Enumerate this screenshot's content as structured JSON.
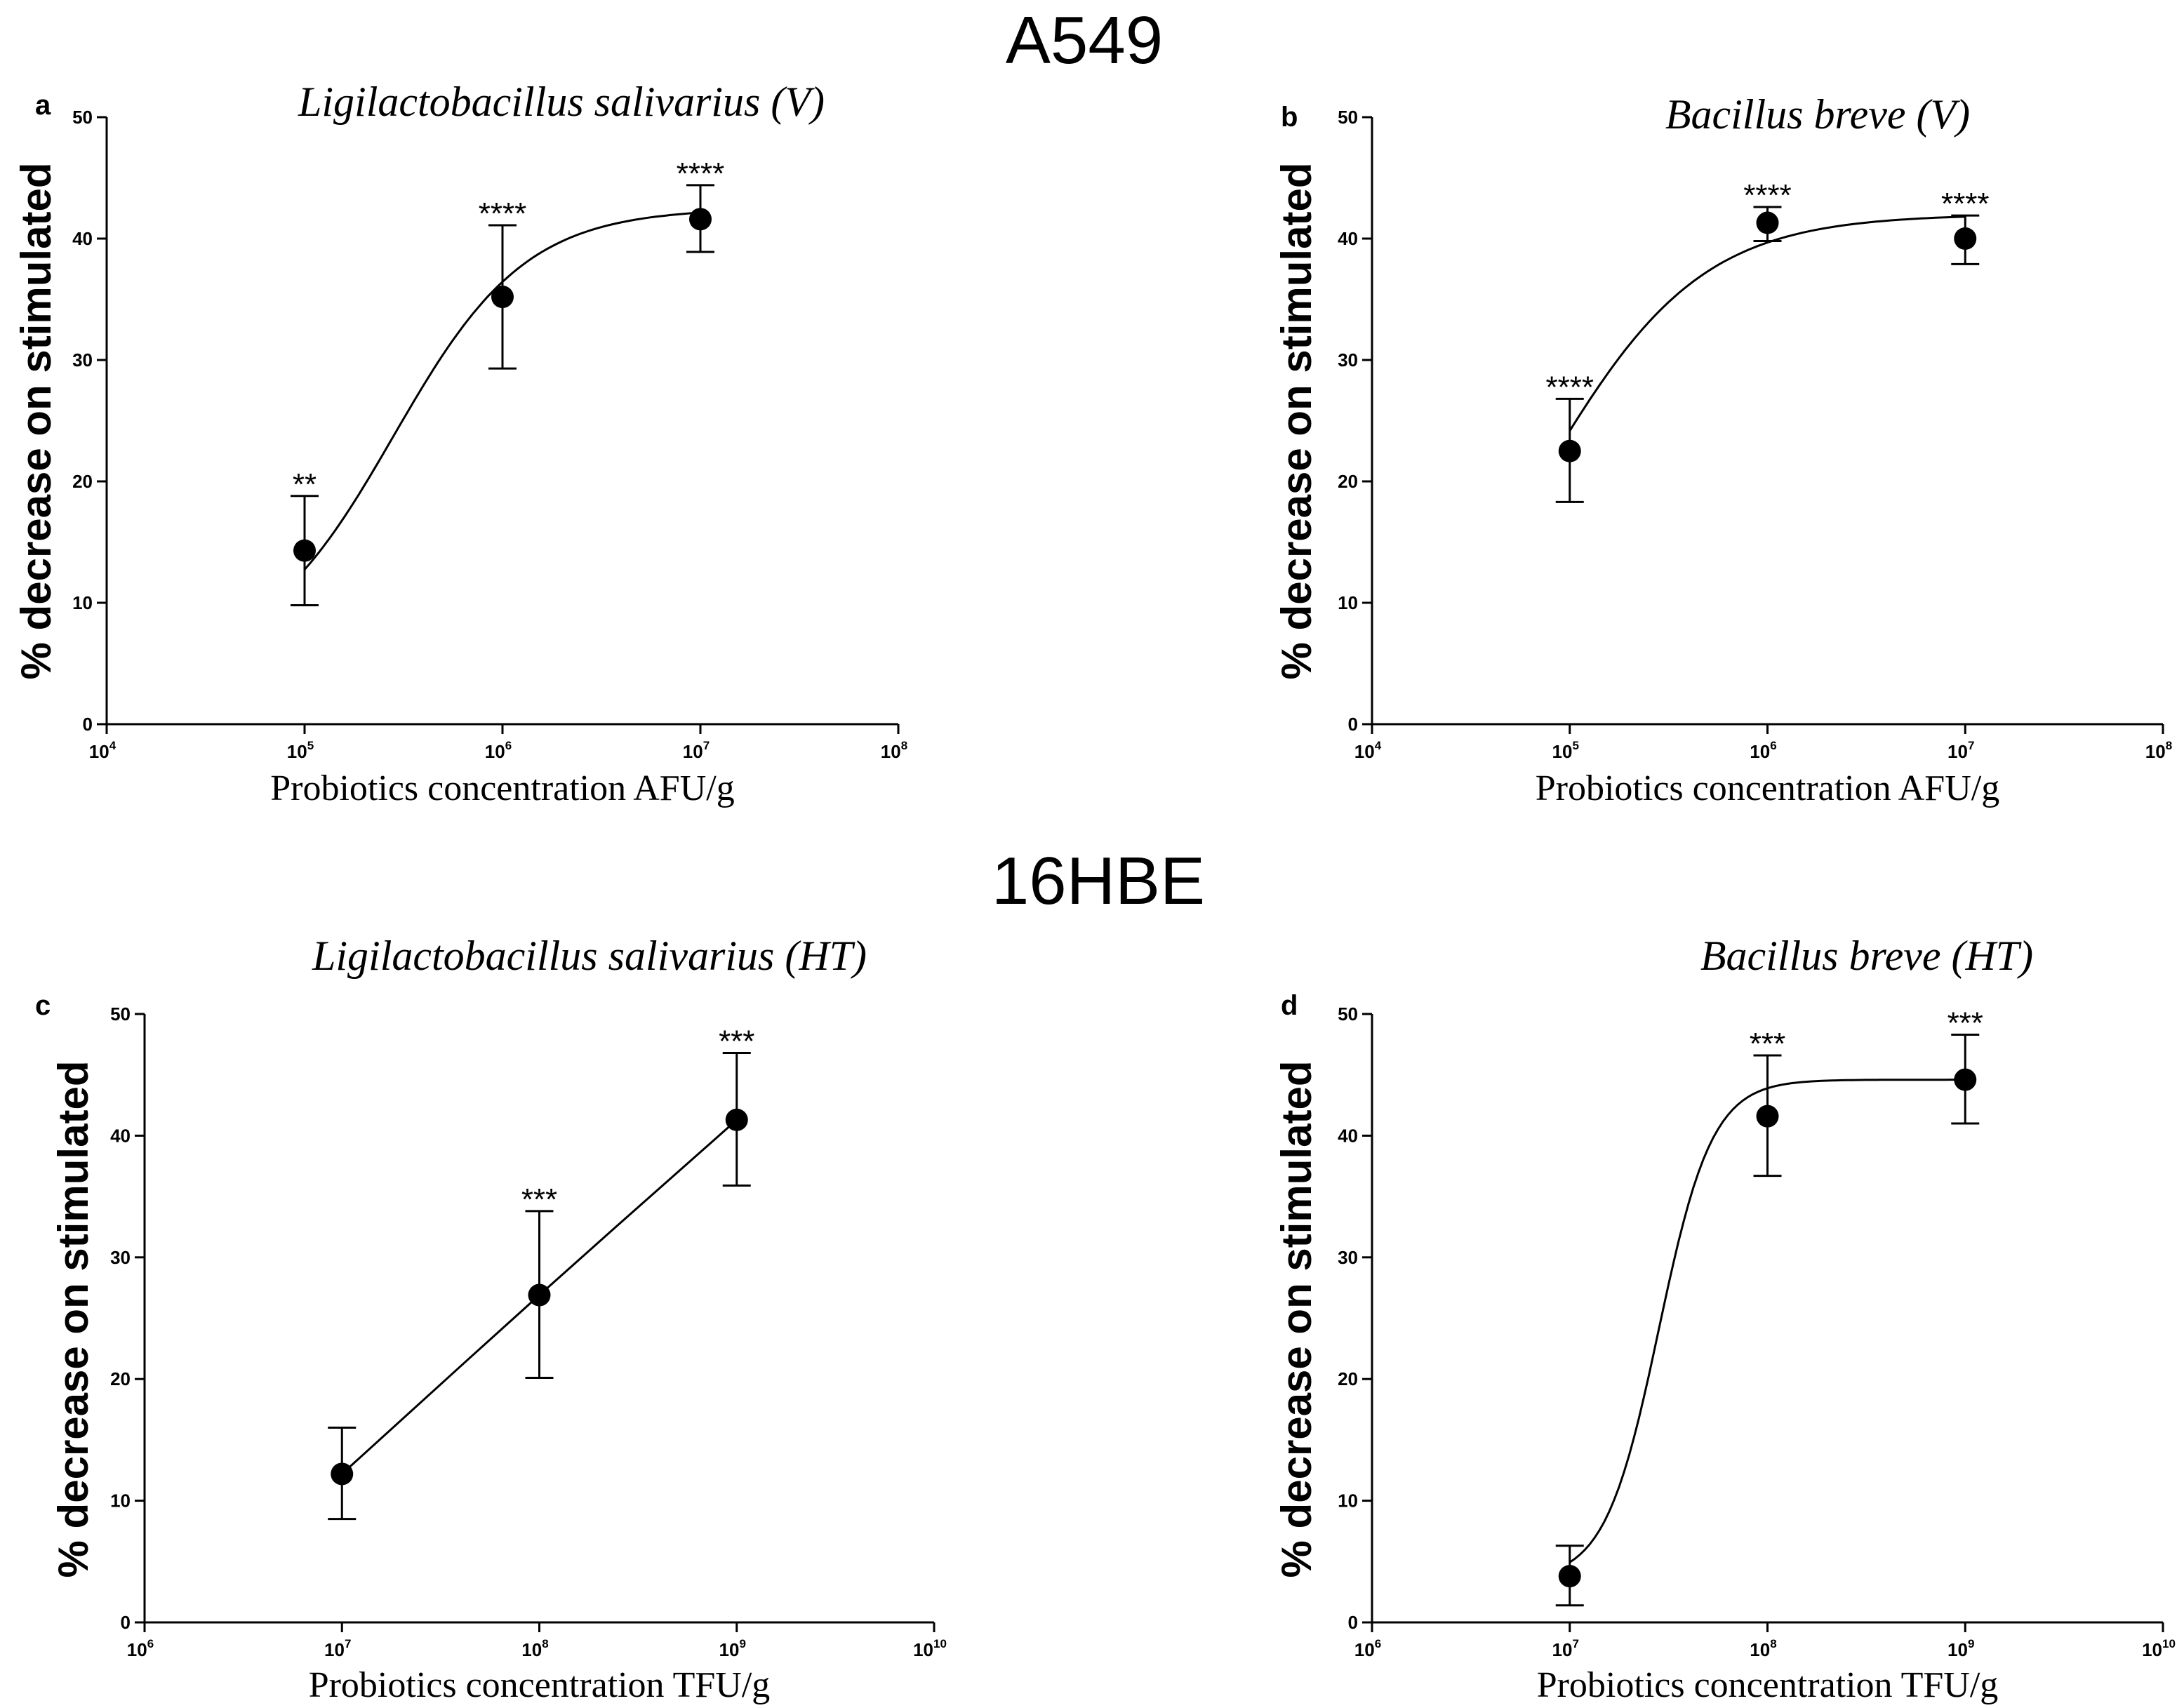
{
  "titles": {
    "top": "A549",
    "bottom": "16HBE"
  },
  "chart_data": [
    {
      "type": "scatter",
      "panel": "a",
      "title": "Ligilactobacillus salivarius (V)",
      "xlabel": "Probiotics concentration AFU/g",
      "ylabel": "% decrease on stimulated",
      "xscale": "log",
      "x_exponent_range": [
        4,
        8
      ],
      "xtick_labels": [
        {
          "base": "10",
          "exp": "4"
        },
        {
          "base": "10",
          "exp": "5"
        },
        {
          "base": "10",
          "exp": "6"
        },
        {
          "base": "10",
          "exp": "7"
        },
        {
          "base": "10",
          "exp": "8"
        }
      ],
      "ylim": [
        0,
        50
      ],
      "yticks": [
        0,
        10,
        20,
        30,
        40,
        50
      ],
      "points": [
        {
          "x_exp": 5,
          "y": 14.3,
          "err_low": 9.8,
          "err_high": 18.8,
          "sig": "**"
        },
        {
          "x_exp": 6,
          "y": 35.2,
          "err_low": 29.3,
          "err_high": 41.1,
          "sig": "****"
        },
        {
          "x_exp": 7,
          "y": 41.6,
          "err_low": 38.9,
          "err_high": 44.4,
          "sig": "****"
        }
      ],
      "curve": {
        "bottom": 5,
        "top": 42.5,
        "logEC50": 5.45,
        "hill": 1.3
      }
    },
    {
      "type": "scatter",
      "panel": "b",
      "title": "Bacillus breve (V)",
      "xlabel": "Probiotics concentration AFU/g",
      "ylabel": "% decrease on stimulated",
      "xscale": "log",
      "x_exponent_range": [
        4,
        8
      ],
      "xtick_labels": [
        {
          "base": "10",
          "exp": "4"
        },
        {
          "base": "10",
          "exp": "5"
        },
        {
          "base": "10",
          "exp": "6"
        },
        {
          "base": "10",
          "exp": "7"
        },
        {
          "base": "10",
          "exp": "8"
        }
      ],
      "ylim": [
        0,
        50
      ],
      "yticks": [
        0,
        10,
        20,
        30,
        40,
        50
      ],
      "points": [
        {
          "x_exp": 5,
          "y": 22.5,
          "err_low": 18.3,
          "err_high": 26.8,
          "sig": "****"
        },
        {
          "x_exp": 6,
          "y": 41.3,
          "err_low": 39.8,
          "err_high": 42.6,
          "sig": "****"
        },
        {
          "x_exp": 7,
          "y": 40.0,
          "err_low": 37.9,
          "err_high": 41.9,
          "sig": "****"
        }
      ],
      "curve": {
        "bottom": 0,
        "top": 42.0,
        "logEC50": 4.88,
        "hill": 1.1
      }
    },
    {
      "type": "scatter",
      "panel": "c",
      "title": "Ligilactobacillus salivarius (HT)",
      "xlabel": "Probiotics concentration TFU/g",
      "ylabel": "% decrease on stimulated",
      "xscale": "log",
      "x_exponent_range": [
        6,
        10
      ],
      "xtick_labels": [
        {
          "base": "10",
          "exp": "6"
        },
        {
          "base": "10",
          "exp": "7"
        },
        {
          "base": "10",
          "exp": "8"
        },
        {
          "base": "10",
          "exp": "9"
        },
        {
          "base": "10",
          "exp": "10"
        }
      ],
      "ylim": [
        0,
        50
      ],
      "yticks": [
        0,
        10,
        20,
        30,
        40,
        50
      ],
      "points": [
        {
          "x_exp": 7,
          "y": 12.2,
          "err_low": 8.5,
          "err_high": 16.0,
          "sig": ""
        },
        {
          "x_exp": 8,
          "y": 26.9,
          "err_low": 20.1,
          "err_high": 33.8,
          "sig": "***"
        },
        {
          "x_exp": 9,
          "y": 41.3,
          "err_low": 35.9,
          "err_high": 46.8,
          "sig": "***"
        }
      ],
      "curve": {
        "through_points": true
      }
    },
    {
      "type": "scatter",
      "panel": "d",
      "title": "Bacillus breve (HT)",
      "xlabel": "Probiotics concentration TFU/g",
      "ylabel": "% decrease on stimulated",
      "xscale": "log",
      "x_exponent_range": [
        6,
        10
      ],
      "xtick_labels": [
        {
          "base": "10",
          "exp": "6"
        },
        {
          "base": "10",
          "exp": "7"
        },
        {
          "base": "10",
          "exp": "8"
        },
        {
          "base": "10",
          "exp": "9"
        },
        {
          "base": "10",
          "exp": "10"
        }
      ],
      "ylim": [
        0,
        50
      ],
      "yticks": [
        0,
        10,
        20,
        30,
        40,
        50
      ],
      "points": [
        {
          "x_exp": 7,
          "y": 3.8,
          "err_low": 1.4,
          "err_high": 6.3,
          "sig": ""
        },
        {
          "x_exp": 8,
          "y": 41.6,
          "err_low": 36.7,
          "err_high": 46.6,
          "sig": "***"
        },
        {
          "x_exp": 9,
          "y": 44.6,
          "err_low": 41.0,
          "err_high": 48.3,
          "sig": "***"
        }
      ],
      "curve": {
        "bottom": 3.5,
        "top": 44.6,
        "logEC50": 7.45,
        "hill": 3.2
      }
    }
  ]
}
